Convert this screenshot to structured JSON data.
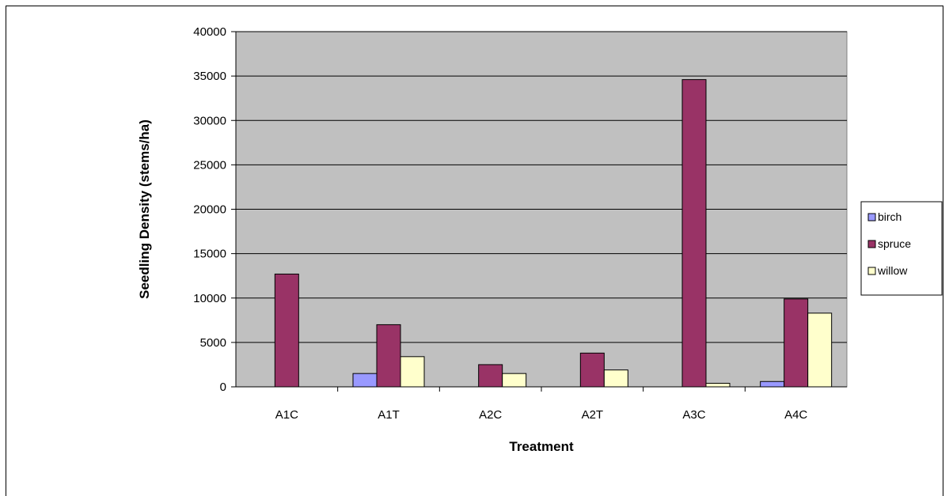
{
  "chart_data": {
    "type": "bar",
    "title": "",
    "xlabel": "Treatment",
    "ylabel": "Seedling Density (stems/ha)",
    "categories": [
      "A1C",
      "A1T",
      "A2C",
      "A2T",
      "A3C",
      "A4C"
    ],
    "ylim": [
      0,
      40000
    ],
    "yticks": [
      0,
      5000,
      10000,
      15000,
      20000,
      25000,
      30000,
      35000,
      40000
    ],
    "grid": true,
    "legend_position": "right",
    "series": [
      {
        "name": "birch",
        "color": "#9999ff",
        "values": [
          0,
          1500,
          0,
          0,
          0,
          600
        ]
      },
      {
        "name": "spruce",
        "color": "#993366",
        "values": [
          12700,
          7000,
          2500,
          3800,
          34600,
          9900
        ]
      },
      {
        "name": "willow",
        "color": "#ffffcc",
        "values": [
          0,
          3400,
          1500,
          1900,
          400,
          8300
        ]
      }
    ],
    "plot_background": "#c0c0c0"
  }
}
